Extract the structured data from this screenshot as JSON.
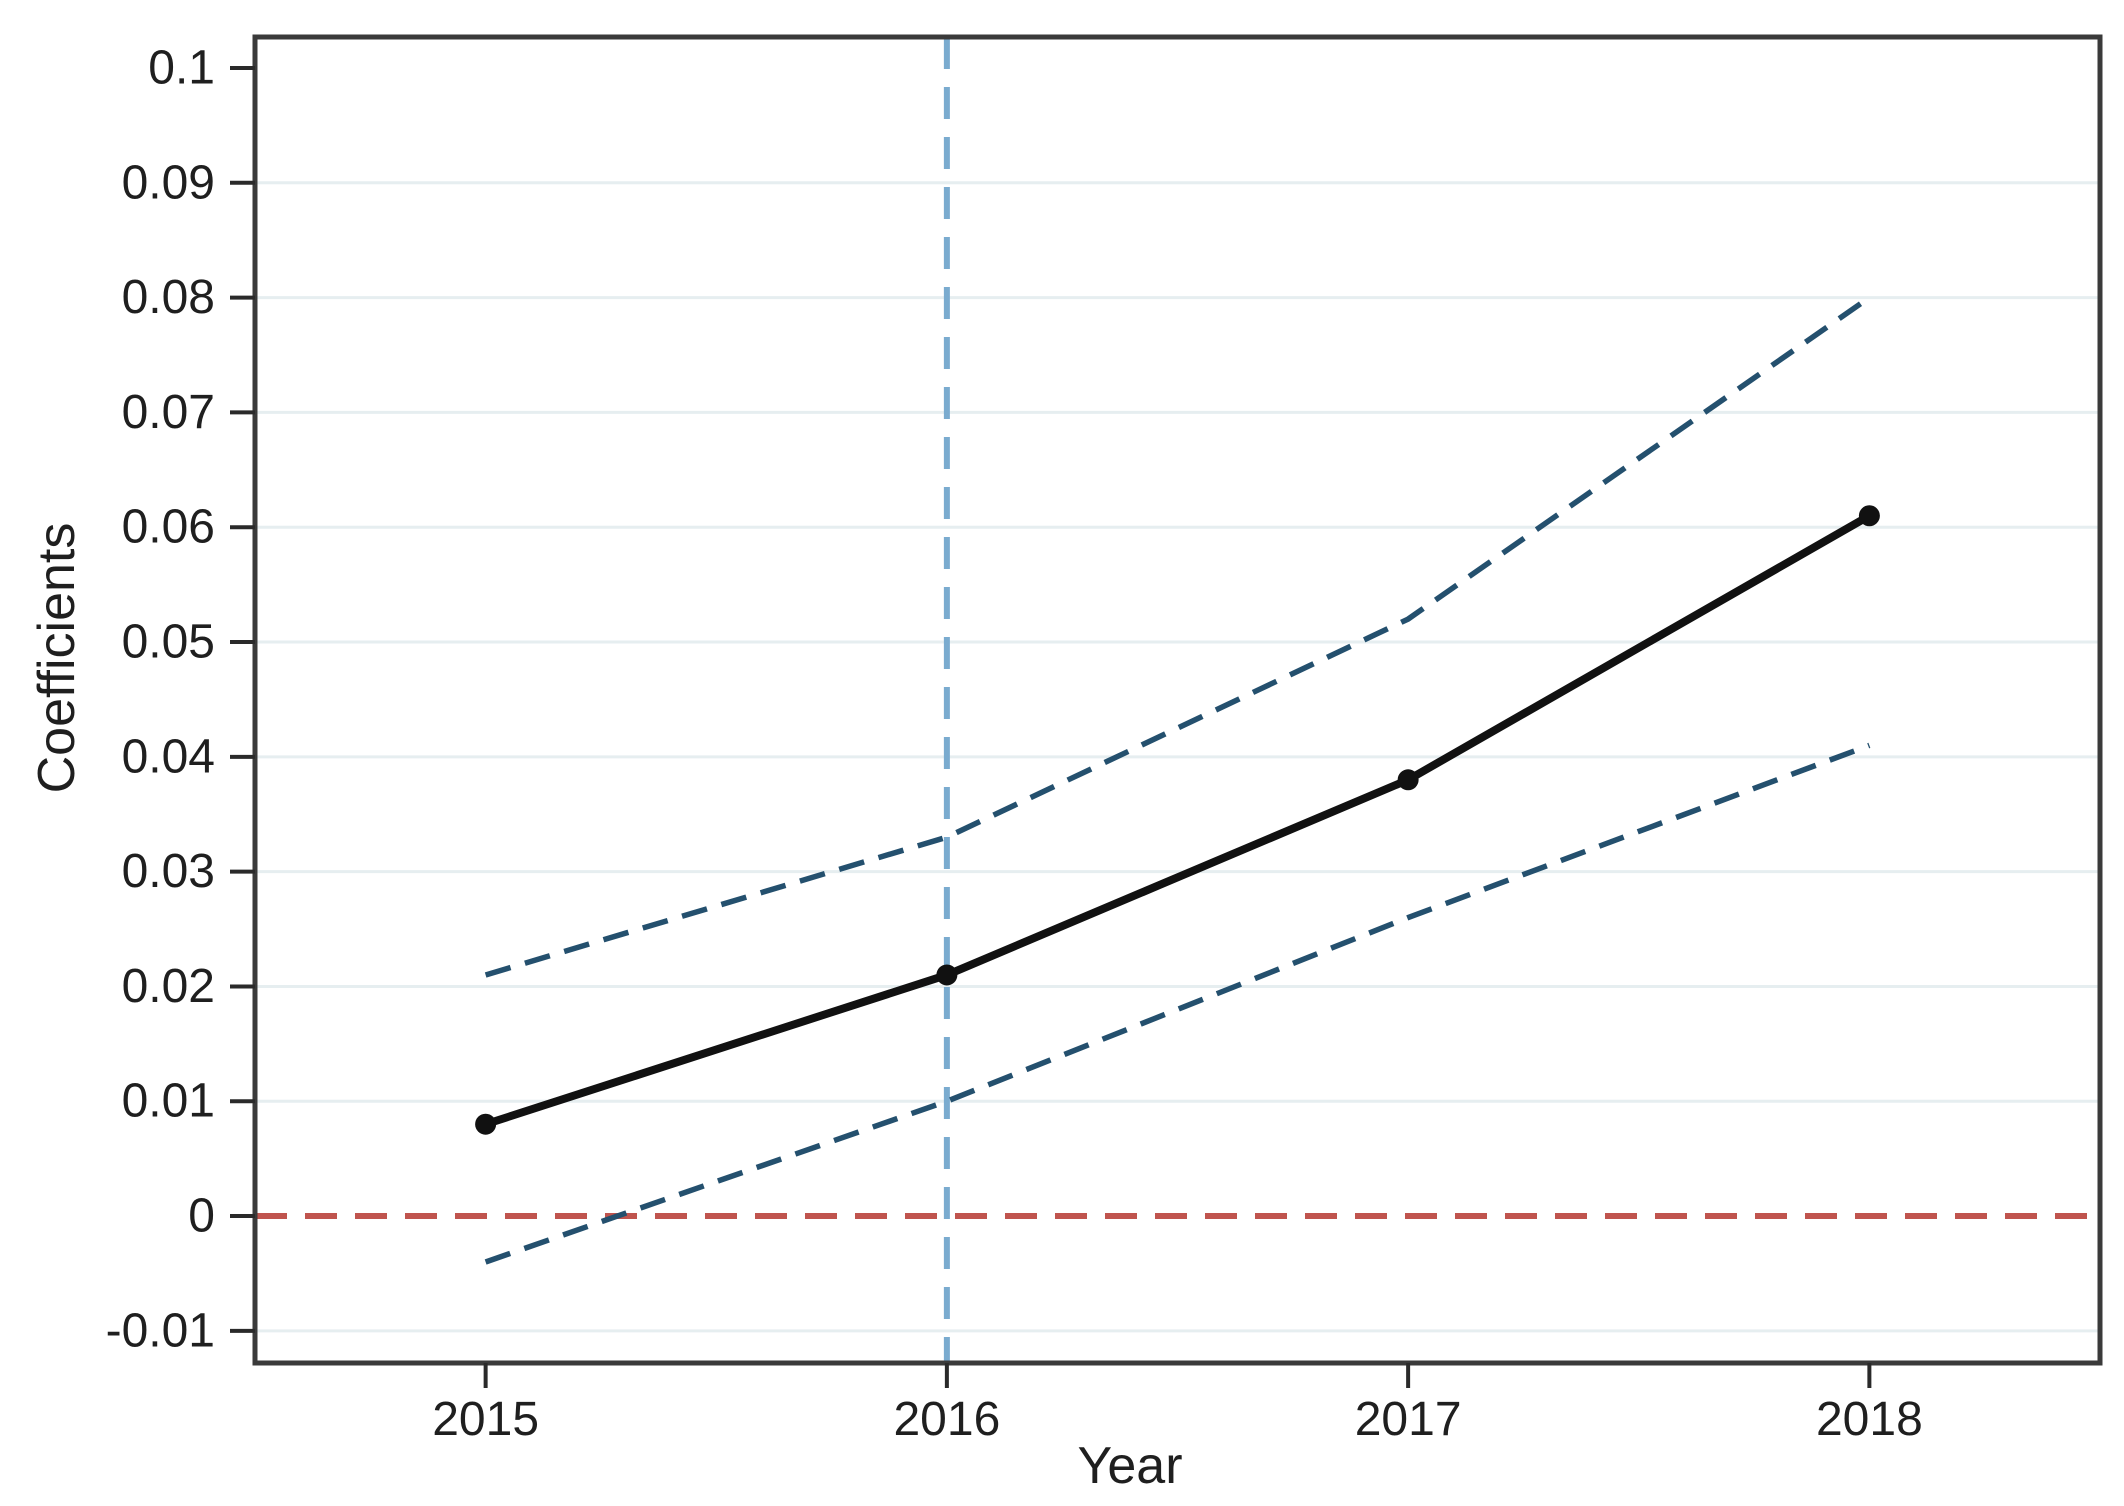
{
  "style": {
    "background": "#ffffff",
    "spine_color": "#3a3a3a",
    "tick_color": "#2a2a2a",
    "grid_color": "#e6eef0",
    "label_color": "#1f1f1f"
  },
  "chart_data": {
    "type": "line",
    "title": "",
    "xlabel": "Year",
    "ylabel": "Coefficients",
    "x": [
      2015,
      2016,
      2017,
      2018
    ],
    "xtick_labels": [
      "2015",
      "2016",
      "2017",
      "2018"
    ],
    "xlim": [
      2014.5,
      2018.5
    ],
    "ylim": [
      -0.0128,
      0.1027
    ],
    "yticks": [
      0.1,
      0.09,
      0.08,
      0.07,
      0.06,
      0.05,
      0.04,
      0.03,
      0.02,
      0.01,
      0,
      -0.01
    ],
    "ytick_labels": [
      "0.1",
      "0.09",
      "0.08",
      "0.07",
      "0.06",
      "0.05",
      "0.04",
      "0.03",
      "0.02",
      "0.01",
      "0",
      "-0.01"
    ],
    "grid_values": [
      0.09,
      0.08,
      0.07,
      0.06,
      0.05,
      0.04,
      0.03,
      0.02,
      0.01,
      -0.01
    ],
    "grid": "horizontal",
    "legend": "none",
    "series": [
      {
        "name": "coefficient-estimate",
        "values": [
          0.008,
          0.021,
          0.038,
          0.061
        ],
        "color": "#111111",
        "line": "solid",
        "width": 8,
        "marker": "circle",
        "marker_size": 10.5
      },
      {
        "name": "upper-confidence-band",
        "values": [
          0.021,
          0.033,
          0.052,
          0.08
        ],
        "color": "#24506e",
        "line": "dashed",
        "dash": "26 15",
        "width": 5.5,
        "marker": "none"
      },
      {
        "name": "lower-confidence-band",
        "values": [
          -0.004,
          0.01,
          0.026,
          0.041
        ],
        "color": "#24506e",
        "line": "dashed",
        "dash": "26 15",
        "width": 5.5,
        "marker": "none"
      }
    ],
    "reference_lines": [
      {
        "name": "zero-reference-line",
        "orientation": "horizontal",
        "value": 0,
        "color": "#c0544e",
        "dash": "32 18",
        "width": 6
      },
      {
        "name": "year-2016-reference-line",
        "orientation": "vertical",
        "value": 2016,
        "color": "#7aabcf",
        "dash": "32 18",
        "width": 6
      }
    ]
  }
}
